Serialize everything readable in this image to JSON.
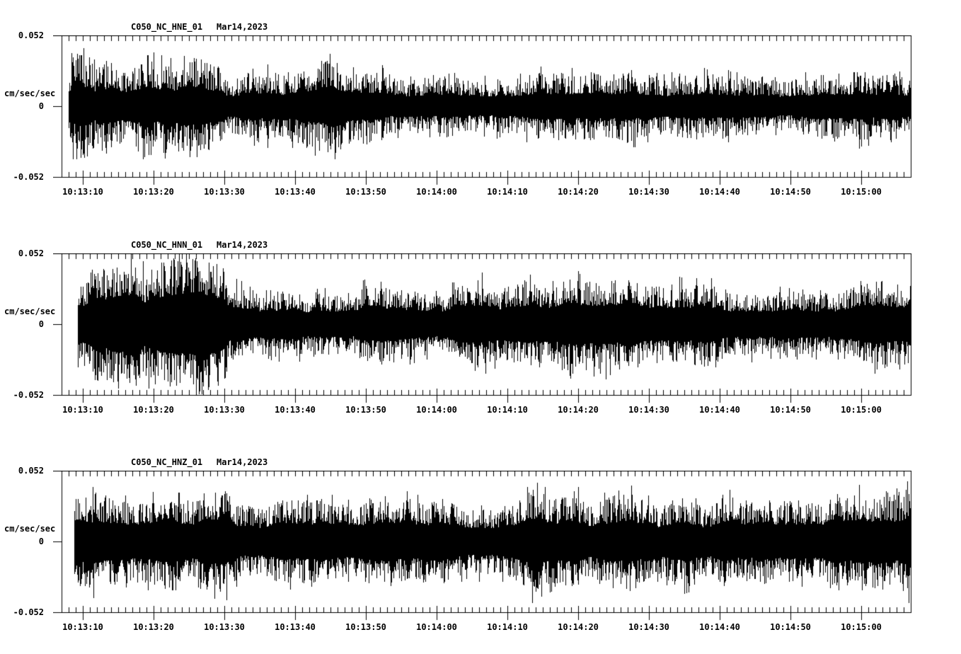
{
  "page": {
    "background_color": "#ffffff",
    "ink_color": "#000000"
  },
  "chart_data": [
    {
      "type": "line",
      "subtype": "seismogram-min-max-trace",
      "station": "C050_NC_HNE_01",
      "date": "Mar14,2023",
      "ylabel": "cm/sec/sec",
      "yticks": [
        "0.052",
        "0",
        "-0.052"
      ],
      "ylim": [
        -0.052,
        0.052
      ],
      "x_start_time": "10:13:07",
      "x_end_time": "10:15:07",
      "x_major_step_s": 10,
      "x_minor_step_s": 1,
      "xtick_labels": [
        "10:13:10",
        "10:13:20",
        "10:13:30",
        "10:13:40",
        "10:13:50",
        "10:14:00",
        "10:14:10",
        "10:14:20",
        "10:14:30",
        "10:14:40",
        "10:14:50",
        "10:15:00"
      ],
      "trace_start_time": "10:13:08",
      "core_band_fraction": 0.36,
      "envelope_t_s": [
        8,
        9,
        12,
        16,
        19,
        21,
        23,
        25,
        27,
        29,
        29.8,
        30.3,
        33,
        38,
        43,
        45,
        47,
        52,
        58,
        64,
        72,
        80,
        88,
        96,
        104,
        110,
        116,
        121,
        125,
        127.2
      ],
      "envelope_peak_cm_s2": [
        0.03,
        0.038,
        0.036,
        0.035,
        0.044,
        0.038,
        0.036,
        0.042,
        0.044,
        0.04,
        0.038,
        0.022,
        0.024,
        0.022,
        0.028,
        0.036,
        0.026,
        0.026,
        0.025,
        0.024,
        0.024,
        0.022,
        0.024,
        0.021,
        0.02,
        0.019,
        0.022,
        0.024,
        0.028,
        0.028
      ]
    },
    {
      "type": "line",
      "subtype": "seismogram-min-max-trace",
      "station": "C050_NC_HNN_01",
      "date": "Mar14,2023",
      "ylabel": "cm/sec/sec",
      "yticks": [
        "0.052",
        "0",
        "-0.052"
      ],
      "ylim": [
        -0.052,
        0.052
      ],
      "x_start_time": "10:13:07",
      "x_end_time": "10:15:07",
      "x_major_step_s": 10,
      "x_minor_step_s": 1,
      "xtick_labels": [
        "10:13:10",
        "10:13:20",
        "10:13:30",
        "10:13:40",
        "10:13:50",
        "10:14:00",
        "10:14:10",
        "10:14:20",
        "10:14:30",
        "10:14:40",
        "10:14:50",
        "10:15:00"
      ],
      "trace_start_time": "10:13:09",
      "core_band_fraction": 0.42,
      "envelope_t_s": [
        9.3,
        11,
        14,
        16,
        18,
        21,
        24,
        26,
        28,
        30,
        30.6,
        34,
        40,
        48,
        56,
        64,
        72,
        80,
        88,
        95,
        102,
        110,
        118,
        124,
        127.2
      ],
      "envelope_peak_cm_s2": [
        0.034,
        0.038,
        0.04,
        0.044,
        0.038,
        0.04,
        0.046,
        0.048,
        0.042,
        0.038,
        0.026,
        0.028,
        0.026,
        0.027,
        0.026,
        0.028,
        0.028,
        0.03,
        0.032,
        0.03,
        0.029,
        0.028,
        0.029,
        0.03,
        0.03
      ]
    },
    {
      "type": "line",
      "subtype": "seismogram-min-max-trace",
      "station": "C050_NC_HNZ_01",
      "date": "Mar14,2023",
      "ylabel": "cm/sec/sec",
      "yticks": [
        "0.052",
        "0",
        "-0.052"
      ],
      "ylim": [
        -0.052,
        0.052
      ],
      "x_start_time": "10:13:07",
      "x_end_time": "10:15:07",
      "x_major_step_s": 10,
      "x_minor_step_s": 1,
      "xtick_labels": [
        "10:13:10",
        "10:13:20",
        "10:13:30",
        "10:13:40",
        "10:13:50",
        "10:14:00",
        "10:14:10",
        "10:14:20",
        "10:14:30",
        "10:14:40",
        "10:14:50",
        "10:15:00"
      ],
      "trace_start_time": "10:13:09",
      "core_band_fraction": 0.42,
      "envelope_t_s": [
        8.8,
        10,
        12,
        15,
        18,
        21,
        23,
        26,
        29,
        31,
        31.8,
        35,
        42,
        50,
        58,
        65,
        71,
        74,
        76,
        82,
        90,
        97,
        104,
        110,
        116,
        122,
        127.2
      ],
      "envelope_peak_cm_s2": [
        0.036,
        0.04,
        0.044,
        0.038,
        0.037,
        0.044,
        0.04,
        0.038,
        0.036,
        0.034,
        0.026,
        0.028,
        0.029,
        0.03,
        0.031,
        0.029,
        0.03,
        0.04,
        0.032,
        0.03,
        0.032,
        0.031,
        0.03,
        0.031,
        0.032,
        0.031,
        0.034
      ]
    }
  ]
}
